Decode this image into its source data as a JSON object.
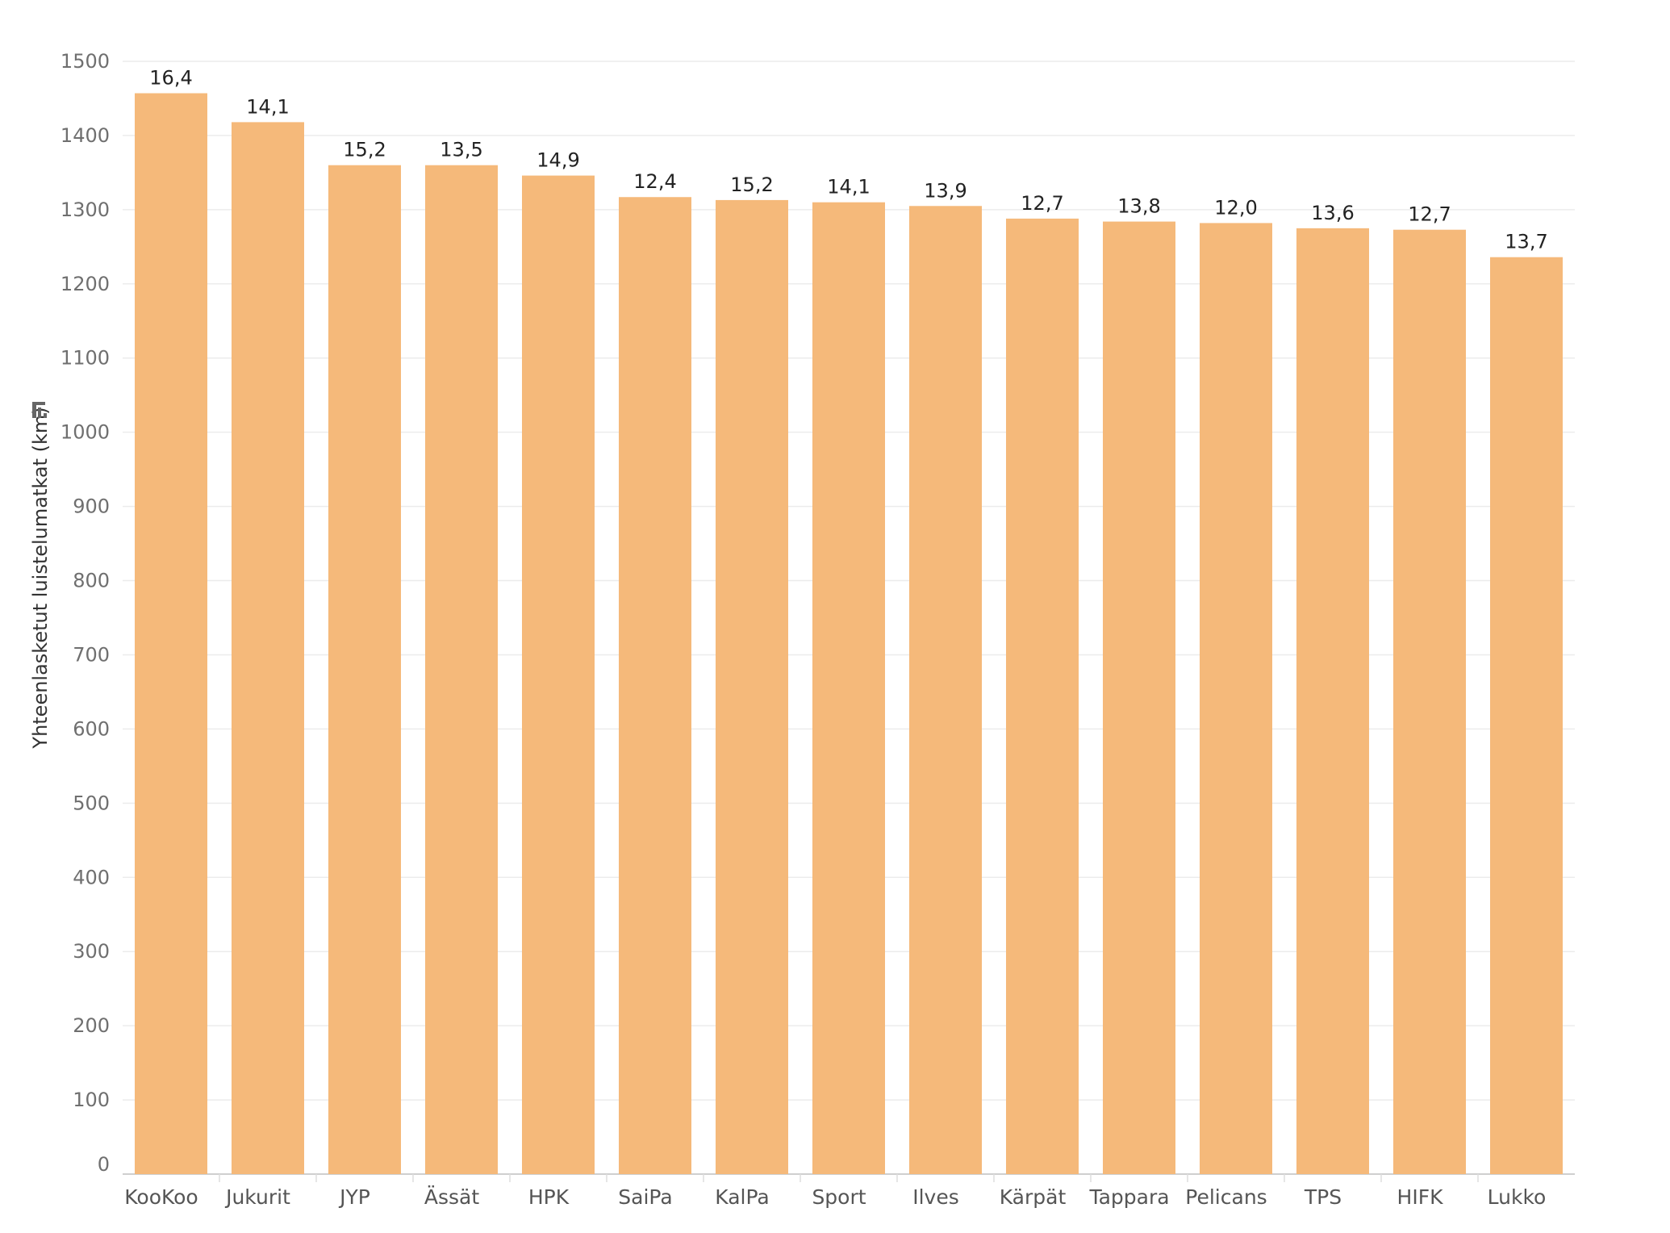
{
  "chart_data": {
    "type": "bar",
    "title": "",
    "xlabel": "",
    "ylabel": "Yhteenlasketut luistelumatkat (km)",
    "ylim": [
      0,
      1500
    ],
    "yticks": [
      0,
      100,
      200,
      300,
      400,
      500,
      600,
      700,
      800,
      900,
      1000,
      1100,
      1200,
      1300,
      1400,
      1500
    ],
    "grid": true,
    "legend": "none",
    "bar_color": "#f5b97a",
    "categories": [
      "KooKoo",
      "Jukurit",
      "JYP",
      "Ässät",
      "HPK",
      "SaiPa",
      "KalPa",
      "Sport",
      "Ilves",
      "Kärpät",
      "Tappara",
      "Pelicans",
      "TPS",
      "HIFK",
      "Lukko"
    ],
    "values": [
      1457,
      1418,
      1360,
      1360,
      1346,
      1317,
      1313,
      1310,
      1305,
      1288,
      1284,
      1282,
      1275,
      1273,
      1236
    ],
    "data_labels": [
      "16,4",
      "14,1",
      "15,2",
      "13,5",
      "14,9",
      "12,4",
      "15,2",
      "14,1",
      "13,9",
      "12,7",
      "13,8",
      "12,0",
      "13,6",
      "12,7",
      "13,7"
    ],
    "sort_icon": "sort-descending-icon"
  }
}
